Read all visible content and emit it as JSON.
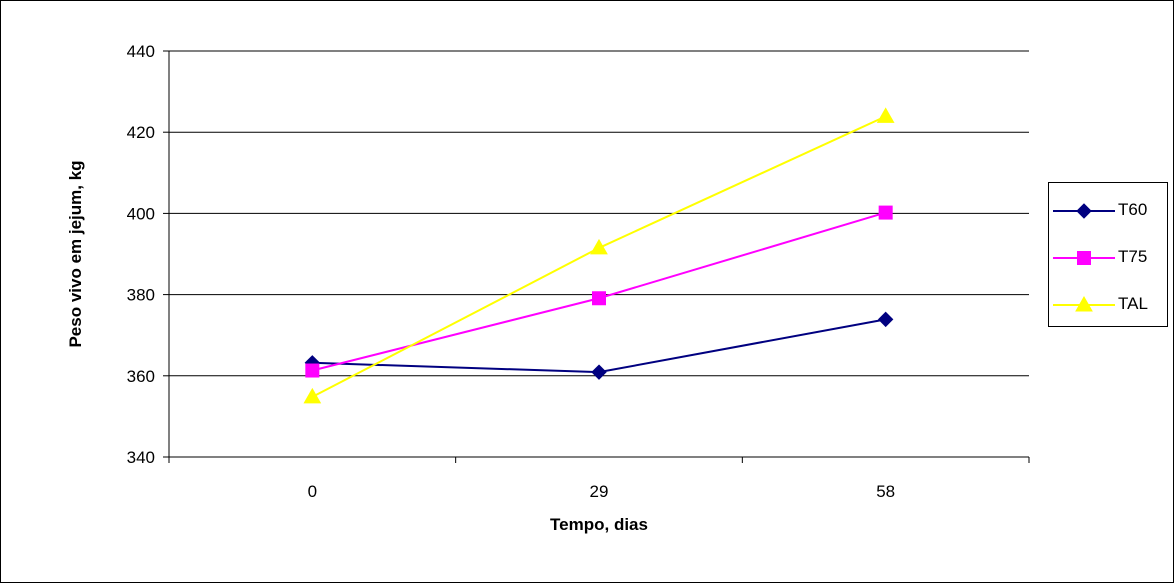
{
  "chart_data": {
    "type": "line",
    "categories": [
      "0",
      "29",
      "58"
    ],
    "series": [
      {
        "name": "T60",
        "values": [
          363.2,
          360.9,
          373.9
        ],
        "color": "#000080",
        "marker": "diamond"
      },
      {
        "name": "T75",
        "values": [
          361.3,
          379.1,
          400.2
        ],
        "color": "#ff00ff",
        "marker": "square"
      },
      {
        "name": "TAL",
        "values": [
          354.8,
          391.5,
          423.9
        ],
        "color": "#ffff00",
        "marker": "triangle"
      }
    ],
    "xlabel": "Tempo, dias",
    "ylabel": "Peso vivo em jejum, kg",
    "ylim": [
      340,
      440
    ],
    "yticks": [
      340,
      360,
      380,
      400,
      420,
      440
    ],
    "grid": true,
    "legend_position": "right"
  }
}
